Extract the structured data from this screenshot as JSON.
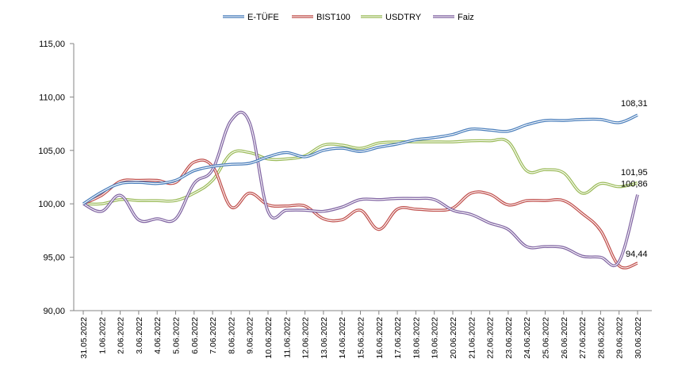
{
  "chart_data": {
    "type": "line",
    "title": "",
    "xlabel": "",
    "ylabel": "",
    "ylim": [
      90,
      115
    ],
    "yticks": [
      "90,00",
      "95,00",
      "100,00",
      "105,00",
      "110,00",
      "115,00"
    ],
    "grid": false,
    "legend_position": "top",
    "categories": [
      "31.05.2022",
      "1.06.2022",
      "2.06.2022",
      "3.06.2022",
      "4.06.2022",
      "5.06.2022",
      "6.06.2022",
      "7.06.2022",
      "8.06.2022",
      "9.06.2022",
      "10.06.2022",
      "11.06.2022",
      "12.06.2022",
      "13.06.2022",
      "14.06.2022",
      "15.06.2022",
      "16.06.2022",
      "17.06.2022",
      "18.06.2022",
      "19.06.2022",
      "20.06.2022",
      "21.06.2022",
      "22.06.2022",
      "23.06.2022",
      "24.06.2022",
      "25.06.2022",
      "26.06.2022",
      "27.06.2022",
      "28.06.2022",
      "29.06.2022",
      "30.06.2022"
    ],
    "series": [
      {
        "name": "E-TÜFE",
        "color": "#4a7ebb",
        "values": [
          100.0,
          101.1,
          101.9,
          102.0,
          101.9,
          102.2,
          103.1,
          103.5,
          103.7,
          103.8,
          104.4,
          104.8,
          104.4,
          105.0,
          105.2,
          104.9,
          105.3,
          105.6,
          106.0,
          106.2,
          106.5,
          107.0,
          106.9,
          106.8,
          107.4,
          107.8,
          107.8,
          107.9,
          107.9,
          107.6,
          108.31
        ]
      },
      {
        "name": "BIST100",
        "color": "#c0504d",
        "values": [
          100.0,
          100.8,
          102.1,
          102.2,
          102.2,
          102.0,
          103.9,
          103.5,
          99.7,
          101.0,
          99.9,
          99.8,
          99.8,
          98.6,
          98.5,
          99.4,
          97.6,
          99.5,
          99.5,
          99.4,
          99.6,
          101.0,
          100.9,
          99.9,
          100.3,
          100.3,
          100.3,
          99.1,
          97.5,
          94.2,
          94.44
        ]
      },
      {
        "name": "USDTRY",
        "color": "#9bbb59",
        "values": [
          100.0,
          100.0,
          100.4,
          100.3,
          100.3,
          100.3,
          101.0,
          102.2,
          104.7,
          104.8,
          104.2,
          104.2,
          104.5,
          105.5,
          105.5,
          105.2,
          105.7,
          105.8,
          105.8,
          105.8,
          105.8,
          105.9,
          105.9,
          105.8,
          103.1,
          103.2,
          102.9,
          101.0,
          101.9,
          101.6,
          101.95
        ]
      },
      {
        "name": "Faiz",
        "color": "#8064a2",
        "values": [
          100.0,
          99.3,
          100.8,
          98.5,
          98.6,
          98.6,
          101.9,
          103.2,
          107.8,
          107.6,
          99.3,
          99.4,
          99.4,
          99.3,
          99.7,
          100.4,
          100.4,
          100.5,
          100.5,
          100.4,
          99.4,
          99.0,
          98.2,
          97.6,
          96.0,
          96.0,
          95.9,
          95.1,
          95.0,
          94.6,
          100.86
        ]
      }
    ],
    "end_labels": [
      "108,31",
      "101,95",
      "100,86",
      "94,44"
    ]
  }
}
